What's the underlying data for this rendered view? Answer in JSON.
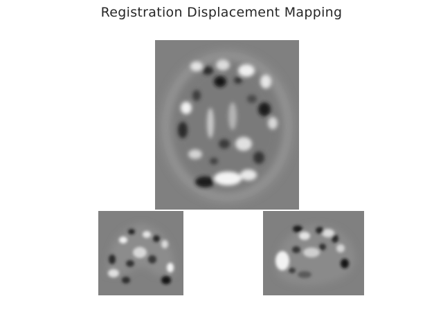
{
  "figure": {
    "title": "Registration Displacement Mapping"
  },
  "panels": [
    {
      "id": "axial",
      "view": "axial-slice"
    },
    {
      "id": "coronal",
      "view": "coronal-slice"
    },
    {
      "id": "sagittal",
      "view": "sagittal-slice"
    }
  ],
  "colors": {
    "background": "#ffffff",
    "panel_gray": "#808080",
    "title_text": "#262626"
  }
}
